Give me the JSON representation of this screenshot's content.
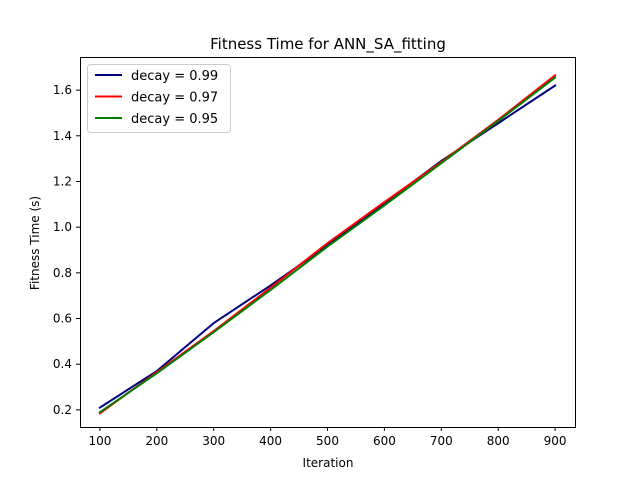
{
  "chart_data": {
    "type": "line",
    "title": "Fitness Time for ANN_SA_fitting",
    "xlabel": "Iteration",
    "ylabel": "Fitness Time (s)",
    "x": [
      100,
      200,
      300,
      400,
      500,
      600,
      700,
      800,
      900
    ],
    "xlim": [
      65,
      935
    ],
    "ylim": [
      0.125,
      1.745
    ],
    "xticks": [
      100,
      200,
      300,
      400,
      500,
      600,
      700,
      800,
      900
    ],
    "yticks": [
      0.2,
      0.4,
      0.6,
      0.8,
      1.0,
      1.2,
      1.4,
      1.6
    ],
    "xtick_labels": [
      "100",
      "200",
      "300",
      "400",
      "500",
      "600",
      "700",
      "800",
      "900"
    ],
    "ytick_labels": [
      "0.2",
      "0.4",
      "0.6",
      "0.8",
      "1.0",
      "1.2",
      "1.4",
      "1.6"
    ],
    "grid": false,
    "legend_position": "top-left",
    "series": [
      {
        "name": "decay = 0.99",
        "color": "#00007f",
        "values": [
          0.21,
          0.37,
          0.58,
          0.745,
          0.92,
          1.105,
          1.29,
          1.455,
          1.62
        ]
      },
      {
        "name": "decay = 0.97",
        "color": "#ff0000",
        "values": [
          0.185,
          0.365,
          0.545,
          0.735,
          0.93,
          1.11,
          1.285,
          1.47,
          1.665
        ]
      },
      {
        "name": "decay = 0.95",
        "color": "#007f00",
        "values": [
          0.19,
          0.36,
          0.54,
          0.725,
          0.915,
          1.095,
          1.28,
          1.465,
          1.655
        ]
      }
    ]
  }
}
